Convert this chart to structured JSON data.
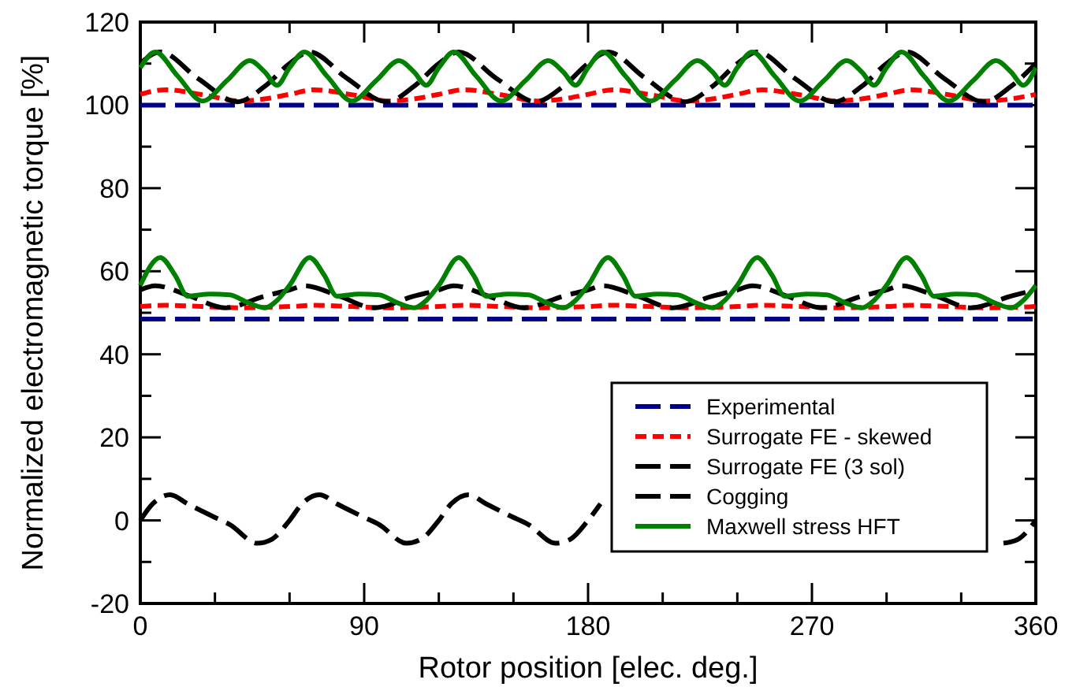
{
  "chart_data": {
    "type": "line",
    "xlabel": "Rotor position [elec. deg.]",
    "ylabel": "Normalized electromagnetic torque [%]",
    "xlim": [
      0,
      360
    ],
    "ylim": [
      -20,
      120
    ],
    "xticks": [
      0,
      {
        "value": 30,
        "label": null
      },
      {
        "value": 60,
        "label": null
      },
      90,
      {
        "value": 120,
        "label": null
      },
      {
        "value": 150,
        "label": null
      },
      180,
      {
        "value": 210,
        "label": null
      },
      {
        "value": 240,
        "label": null
      },
      270,
      {
        "value": 300,
        "label": null
      },
      {
        "value": 330,
        "label": null
      },
      360
    ],
    "yticks": [
      -20,
      {
        "value": -10,
        "label": null
      },
      0,
      {
        "value": 10,
        "label": null
      },
      20,
      {
        "value": 30,
        "label": null
      },
      40,
      {
        "value": 50,
        "label": null
      },
      60,
      {
        "value": 70,
        "label": null
      },
      80,
      {
        "value": 90,
        "label": null
      },
      100,
      {
        "value": 110,
        "label": null
      },
      120
    ],
    "grid": false,
    "legend": "bottom right",
    "marker": "none",
    "series": [
      {
        "name": "Experimental",
        "color": "#00008b",
        "line_style": "dashed",
        "x": [
          0,
          360
        ],
        "values": [
          100,
          100
        ]
      },
      {
        "name": "Surrogate FE - skewed",
        "color": "#ff0000",
        "line_style": "dotted",
        "x": [
          0,
          10,
          25,
          40,
          50,
          60,
          70,
          85,
          100,
          110,
          120,
          130,
          145,
          160,
          170,
          180,
          190,
          205,
          220,
          230,
          240,
          250,
          265,
          280,
          290,
          300,
          310,
          325,
          340,
          350,
          360
        ],
        "values": [
          102.6,
          103.7,
          102.5,
          101,
          101.5,
          102.6,
          103.7,
          102.5,
          101,
          101.5,
          102.6,
          103.7,
          102.5,
          101,
          101.5,
          102.6,
          103.7,
          102.5,
          101,
          101.5,
          102.6,
          103.7,
          102.5,
          101,
          101.5,
          102.6,
          103.7,
          102.5,
          101,
          101.5,
          102.6
        ]
      },
      {
        "name": "Surrogate FE (3 sol)",
        "color": "#000000",
        "line_style": "dashed",
        "x": [
          0,
          8,
          23,
          39,
          50,
          60,
          68,
          83,
          99,
          110,
          120,
          128,
          143,
          159,
          170,
          180,
          188,
          203,
          219,
          230,
          240,
          248,
          263,
          279,
          290,
          300,
          308,
          323,
          339,
          350,
          360
        ],
        "values": [
          110,
          112.8,
          106.5,
          100.8,
          104.5,
          110,
          112.8,
          106.5,
          100.8,
          104.5,
          110,
          112.8,
          106.5,
          100.8,
          104.5,
          110,
          112.8,
          106.5,
          100.8,
          104.5,
          110,
          112.8,
          106.5,
          100.8,
          104.5,
          110,
          112.8,
          106.5,
          100.8,
          104.5,
          110
        ]
      },
      {
        "name": "Cogging",
        "color": "#000000",
        "line_style": "dashed",
        "x": [
          0,
          5,
          12,
          19,
          29,
          36,
          47,
          53,
          60,
          65,
          72,
          79,
          89,
          96,
          107,
          113,
          120,
          125,
          132,
          139,
          149,
          156,
          167,
          173,
          180,
          185,
          192,
          347,
          353,
          360
        ],
        "values": [
          0,
          4,
          6.2,
          4,
          1,
          -1,
          -5.5,
          -4.5,
          0,
          4,
          6.2,
          4,
          1,
          -1,
          -5.5,
          -4.5,
          0,
          4,
          6.2,
          4,
          1,
          -1,
          -5.5,
          -4.5,
          0,
          4,
          null,
          -5.5,
          -4.5,
          0
        ]
      },
      {
        "name": "Maxwell stress HFT",
        "color": "#008000",
        "line_style": "solid",
        "x": [
          0,
          6,
          15,
          25,
          35,
          44,
          50,
          55,
          60,
          66,
          75,
          85,
          95,
          104,
          110,
          115,
          120,
          126,
          135,
          145,
          155,
          164,
          170,
          175,
          180,
          186,
          195,
          205,
          215,
          224,
          230,
          235,
          240,
          246,
          255,
          265,
          275,
          284,
          290,
          295,
          300,
          306,
          315,
          325,
          335,
          344,
          350,
          355,
          360
        ],
        "values": [
          109,
          112.8,
          107,
          101,
          106,
          110.7,
          108,
          104.8,
          109,
          112.8,
          107,
          101,
          106,
          110.7,
          108,
          104.8,
          109,
          112.8,
          107,
          101,
          106,
          110.7,
          108,
          104.8,
          109,
          112.8,
          107,
          101,
          106,
          110.7,
          108,
          104.8,
          109,
          112.8,
          107,
          101,
          106,
          110.7,
          108,
          104.8,
          109,
          112.8,
          107,
          101,
          106,
          110.7,
          108,
          104.8,
          109
        ]
      },
      {
        "color": "#00008b",
        "line_style": "dashed",
        "x": [
          0,
          360
        ],
        "values": [
          48.5,
          48.5
        ]
      },
      {
        "color": "#ff0000",
        "line_style": "dotted",
        "x": [
          0,
          10,
          25,
          40,
          50,
          60,
          70,
          85,
          100,
          110,
          120,
          130,
          145,
          160,
          170,
          180,
          190,
          205,
          220,
          230,
          240,
          250,
          265,
          280,
          290,
          300,
          310,
          325,
          340,
          350,
          360
        ],
        "values": [
          51.5,
          51.8,
          51.5,
          51.2,
          51.3,
          51.5,
          51.8,
          51.5,
          51.2,
          51.3,
          51.5,
          51.8,
          51.5,
          51.2,
          51.3,
          51.5,
          51.8,
          51.5,
          51.2,
          51.3,
          51.5,
          51.8,
          51.5,
          51.2,
          51.3,
          51.5,
          51.8,
          51.5,
          51.2,
          51.3,
          51.5
        ]
      },
      {
        "color": "#000000",
        "line_style": "dashed",
        "x": [
          0,
          6,
          20,
          34,
          50,
          60,
          66,
          80,
          94,
          110,
          120,
          126,
          140,
          154,
          170,
          180,
          186,
          200,
          214,
          230,
          240,
          246,
          260,
          274,
          290,
          300,
          306,
          320,
          334,
          350,
          360
        ],
        "values": [
          55.5,
          56.5,
          54,
          51.2,
          54,
          55.5,
          56.5,
          54,
          51.2,
          54,
          55.5,
          56.5,
          54,
          51.2,
          54,
          55.5,
          56.5,
          54,
          51.2,
          54,
          55.5,
          56.5,
          54,
          51.2,
          54,
          55.5,
          56.5,
          54,
          51.2,
          54,
          55.5
        ]
      },
      {
        "color": "#008000",
        "line_style": "solid",
        "x": [
          0,
          8,
          14,
          19,
          28,
          36,
          43,
          50,
          55,
          60,
          68,
          74,
          79,
          88,
          96,
          103,
          110,
          115,
          120,
          128,
          134,
          139,
          148,
          156,
          163,
          170,
          175,
          180,
          188,
          194,
          199,
          208,
          216,
          223,
          230,
          235,
          240,
          248,
          254,
          259,
          268,
          276,
          283,
          290,
          295,
          300,
          308,
          314,
          319,
          328,
          336,
          343,
          350,
          355,
          360
        ],
        "values": [
          56.6,
          63.3,
          59,
          54,
          54.5,
          54.3,
          52.5,
          51.2,
          53,
          56.6,
          63.3,
          59,
          54,
          54.5,
          54.3,
          52.5,
          51.2,
          53,
          56.6,
          63.3,
          59,
          54,
          54.5,
          54.3,
          52.5,
          51.2,
          53,
          56.6,
          63.3,
          59,
          54,
          54.5,
          54.3,
          52.5,
          51.2,
          53,
          56.6,
          63.3,
          59,
          54,
          54.5,
          54.3,
          52.5,
          51.2,
          53,
          56.6,
          63.3,
          59,
          54,
          54.5,
          54.3,
          52.5,
          51.2,
          53,
          56.6
        ]
      }
    ]
  }
}
